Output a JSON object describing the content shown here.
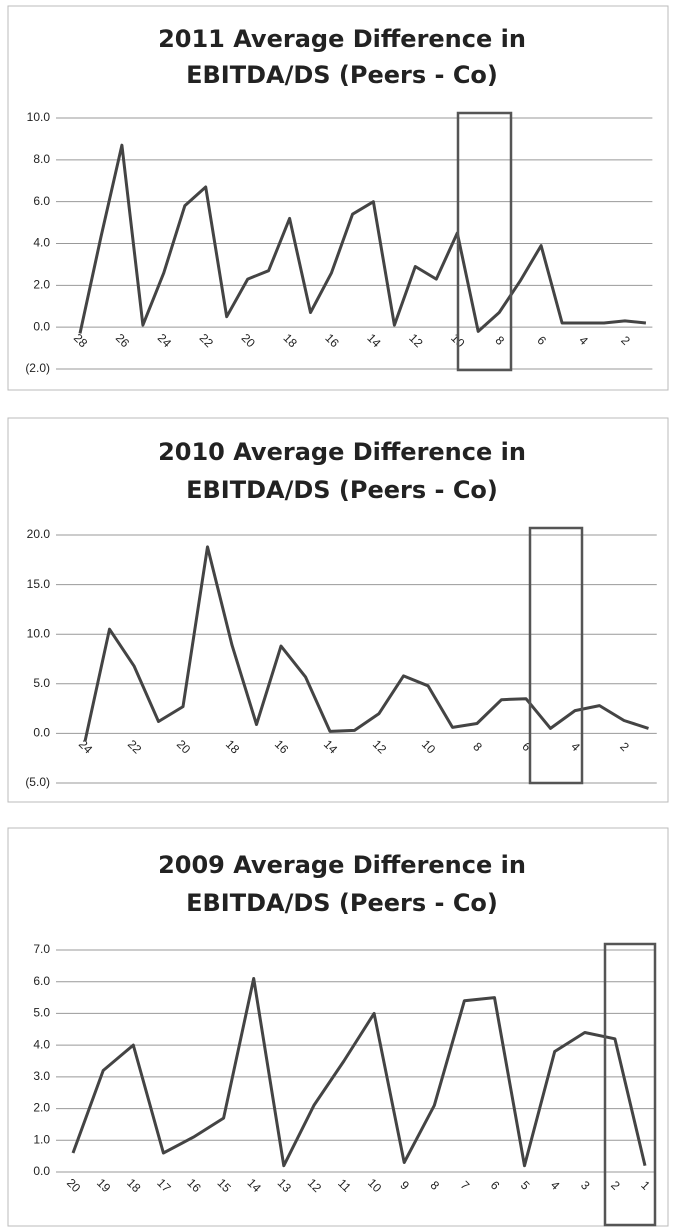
{
  "chart_data": [
    {
      "type": "line",
      "title": [
        "2011 Average Difference in",
        "EBITDA/DS (Peers - Co)"
      ],
      "categories": [
        "28",
        null,
        "26",
        null,
        "24",
        null,
        "22",
        null,
        "20",
        null,
        "18",
        null,
        "16",
        null,
        "14",
        null,
        "12",
        null,
        "10",
        null,
        "8",
        null,
        "6",
        null,
        "4",
        null,
        "2",
        null
      ],
      "values": [
        -0.3,
        4.3,
        8.7,
        0.1,
        2.6,
        5.8,
        6.7,
        0.5,
        2.3,
        2.7,
        5.2,
        0.7,
        2.6,
        5.4,
        6.0,
        0.1,
        2.9,
        2.3,
        4.5,
        -0.2,
        0.7,
        2.2,
        3.9,
        0.2,
        0.2,
        0.2,
        0.3,
        0.2
      ],
      "color": "#444444",
      "ylim": [
        -2,
        10
      ],
      "yticks": [
        {
          "value": -2,
          "label": "(2.0)"
        },
        {
          "value": 0,
          "label": "0.0"
        },
        {
          "value": 2,
          "label": "2.0"
        },
        {
          "value": 4,
          "label": "4.0"
        },
        {
          "value": 6,
          "label": "6.0"
        },
        {
          "value": 8,
          "label": "8.0"
        },
        {
          "value": 10,
          "label": "10.0"
        }
      ],
      "grid": true
    },
    {
      "type": "line",
      "title": [
        "2010 Average Difference in",
        "EBITDA/DS (Peers - Co)"
      ],
      "categories": [
        "24",
        null,
        "22",
        null,
        "20",
        null,
        "18",
        null,
        "16",
        null,
        "14",
        null,
        "12",
        null,
        "10",
        null,
        "8",
        null,
        "6",
        null,
        "4",
        null,
        "2",
        null
      ],
      "values": [
        -0.8,
        10.5,
        6.8,
        1.2,
        2.7,
        18.8,
        8.9,
        0.9,
        8.8,
        5.7,
        0.2,
        0.3,
        2.0,
        5.8,
        4.8,
        0.6,
        1.0,
        3.4,
        3.5,
        0.5,
        2.3,
        2.8,
        1.3,
        0.5
      ],
      "color": "#444444",
      "ylim": [
        -5,
        20
      ],
      "yticks": [
        {
          "value": -5,
          "label": "(5.0)"
        },
        {
          "value": 0,
          "label": "0.0"
        },
        {
          "value": 5,
          "label": "5.0"
        },
        {
          "value": 10,
          "label": "10.0"
        },
        {
          "value": 15,
          "label": "15.0"
        },
        {
          "value": 20,
          "label": "20.0"
        }
      ],
      "grid": true
    },
    {
      "type": "line",
      "title": [
        "2009 Average Difference in",
        "EBITDA/DS (Peers - Co)"
      ],
      "categories": [
        "20",
        "19",
        "18",
        "17",
        "16",
        "15",
        "14",
        "13",
        "12",
        "11",
        "10",
        "9",
        "8",
        "7",
        "6",
        "5",
        "4",
        "3",
        "2",
        "1"
      ],
      "values": [
        0.6,
        3.2,
        4.0,
        0.6,
        1.1,
        1.7,
        6.1,
        0.2,
        2.1,
        3.5,
        5.0,
        0.3,
        2.1,
        5.4,
        5.5,
        0.2,
        3.8,
        4.4,
        4.2,
        0.2
      ],
      "color": "#444444",
      "ylim": [
        0,
        7
      ],
      "yticks": [
        {
          "value": 0,
          "label": "0.0"
        },
        {
          "value": 1,
          "label": "1.0"
        },
        {
          "value": 2,
          "label": "2.0"
        },
        {
          "value": 3,
          "label": "3.0"
        },
        {
          "value": 4,
          "label": "4.0"
        },
        {
          "value": 5,
          "label": "5.0"
        },
        {
          "value": 6,
          "label": "6.0"
        },
        {
          "value": 7,
          "label": "7.0"
        }
      ],
      "grid": true
    }
  ]
}
